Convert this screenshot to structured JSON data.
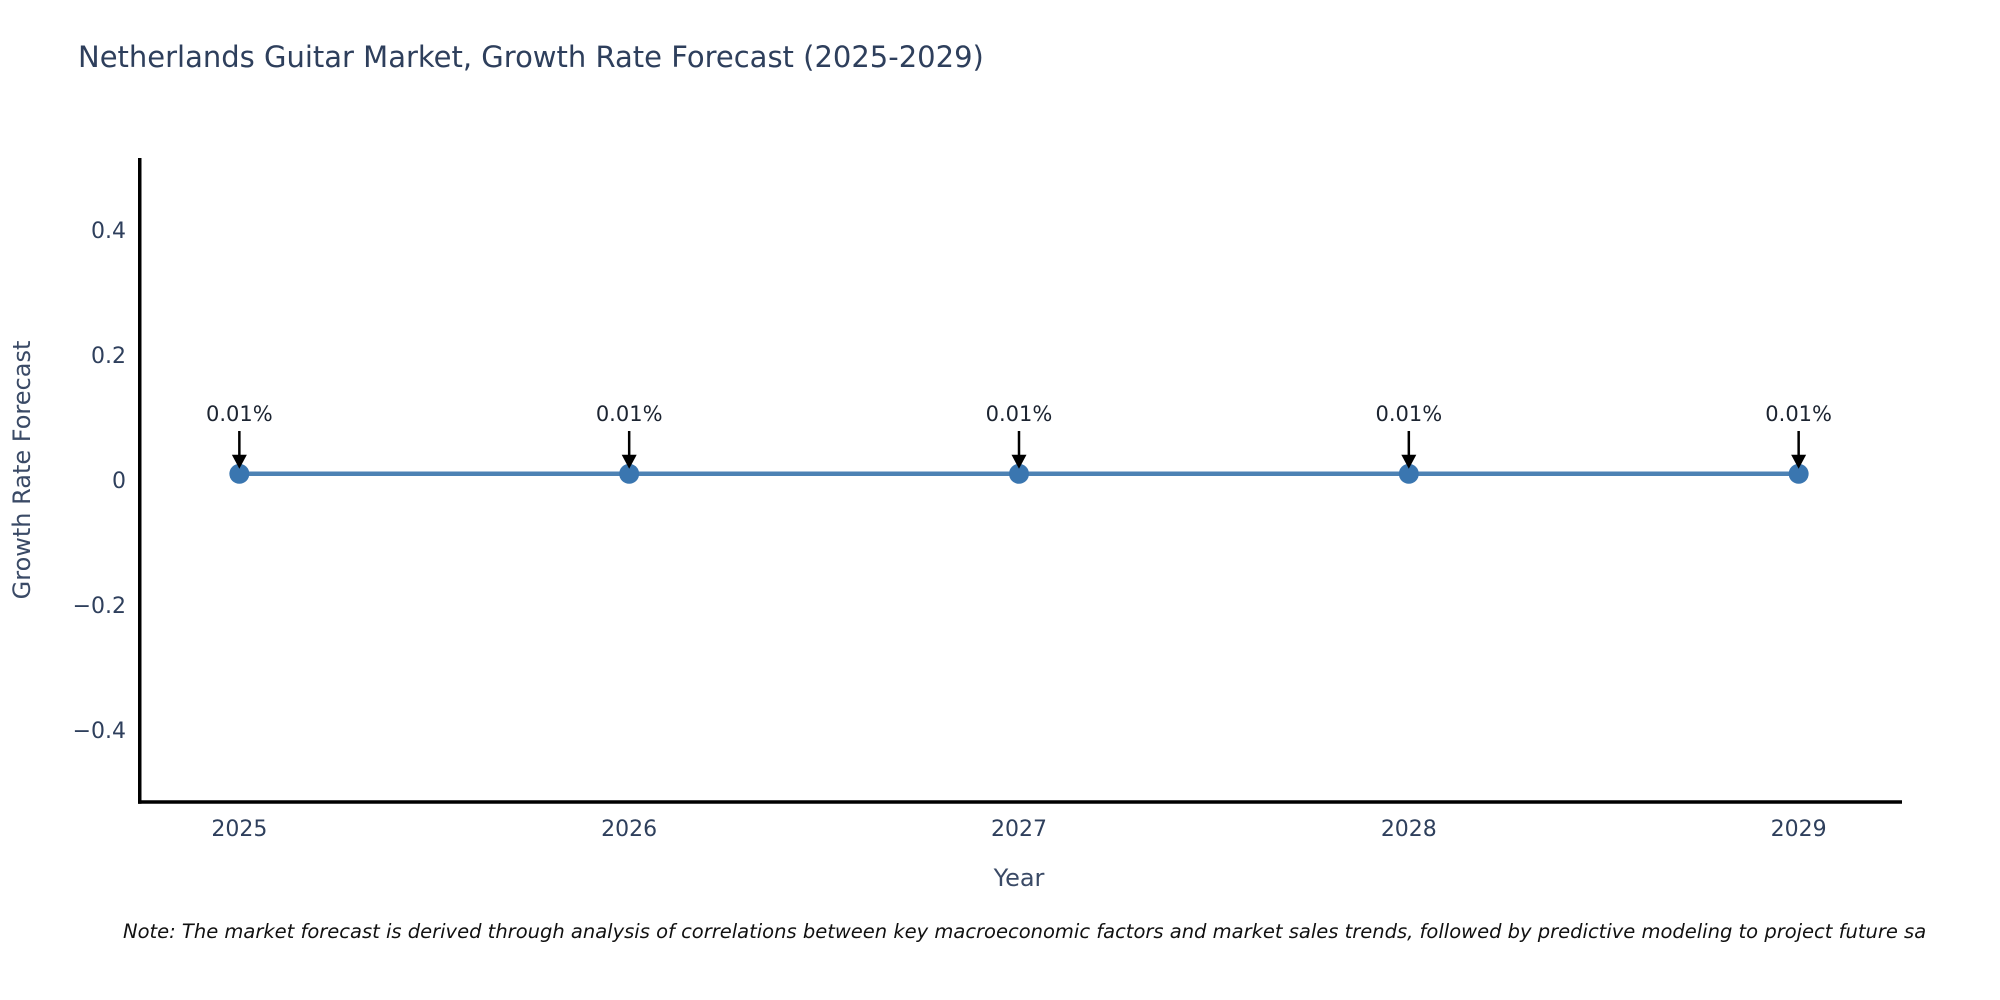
{
  "figure": {
    "note": "Note: The market forecast is derived through analysis of correlations between key macroeconomic factors and market sales trends, followed by predictive modeling to project future sa"
  },
  "chart_data": {
    "type": "line",
    "title": "Netherlands Guitar Market, Growth Rate Forecast (2025-2029)",
    "xlabel": "Year",
    "ylabel": "Growth Rate Forecast",
    "x": [
      2025,
      2026,
      2027,
      2028,
      2029
    ],
    "series": [
      {
        "name": "Growth Rate Forecast",
        "values": [
          0.01,
          0.01,
          0.01,
          0.01,
          0.01
        ]
      }
    ],
    "point_labels": [
      "0.01%",
      "0.01%",
      "0.01%",
      "0.01%",
      "0.01%"
    ],
    "x_ticks": [
      "2025",
      "2026",
      "2027",
      "2028",
      "2029"
    ],
    "y_ticks": [
      0.4,
      0.2,
      0,
      -0.2,
      -0.4
    ],
    "xlim": [
      2024.74,
      2029.26
    ],
    "ylim": [
      -0.515,
      0.512
    ],
    "grid": false,
    "legend": "none",
    "colors": {
      "line": "#4d82b4",
      "marker": "#3a76b0",
      "axis": "#000000",
      "tick_text": "#2e3f5c",
      "axis_title_text": "#3a4a66",
      "annotation_text": "#1c2431",
      "arrow": "#000000"
    }
  }
}
